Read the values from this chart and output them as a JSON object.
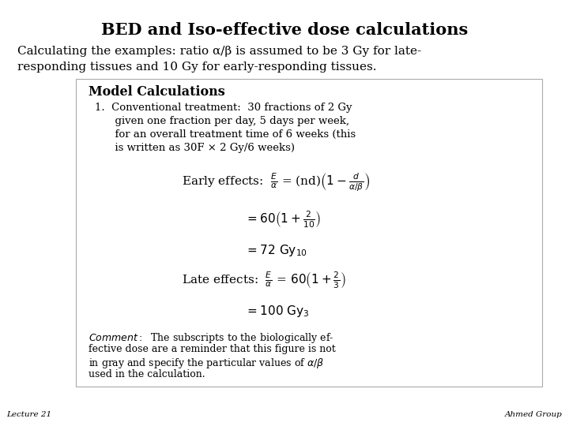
{
  "title": "BED and Iso-effective dose calculations",
  "subtitle_line1": "Calculating the examples: ratio α/β is assumed to be 3 Gy for late-",
  "subtitle_line2": "responding tissues and 10 Gy for early-responding tissues.",
  "footer_left": "Lecture 21",
  "footer_right": "Ahmed Group",
  "background_color": "#ffffff",
  "text_color": "#000000",
  "model_calc_title": "Model Calculations",
  "item1_line1": "1.  Conventional treatment:  30 fractions of 2 Gy",
  "item1_line2": "      given one fraction per day, 5 days per week,",
  "item1_line3": "      for an overall treatment time of 6 weeks (this",
  "item1_line4": "      is written as 30F × 2 Gy/6 weeks)"
}
